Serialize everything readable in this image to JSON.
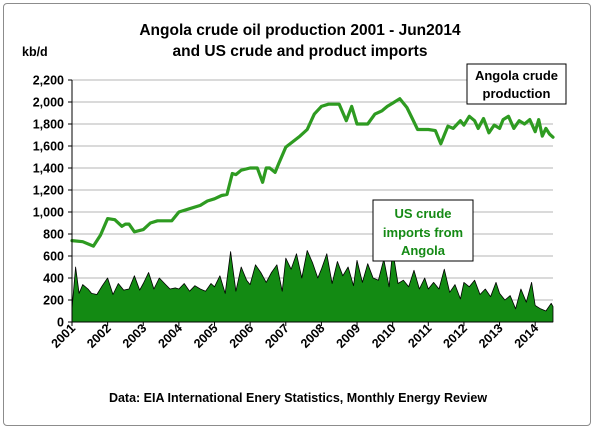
{
  "chart_data": {
    "type": "line",
    "title_line1": "Angola crude oil production 2001 - Jun2014",
    "title_line2": "and US crude and product imports",
    "ylabel": "kb/d",
    "ylim": [
      0,
      2200
    ],
    "yticks": [
      "0",
      "200",
      "400",
      "600",
      "800",
      "1,000",
      "1,200",
      "1,400",
      "1,600",
      "1,800",
      "2,000",
      "2,200"
    ],
    "xticks": [
      "2001",
      "2002",
      "2003",
      "2004",
      "2005",
      "2006",
      "2007",
      "2008",
      "2009",
      "2010",
      "2011",
      "2012",
      "2013",
      "2014"
    ],
    "xlim": [
      2001.0,
      2014.5
    ],
    "grid": true,
    "annotations": {
      "production": [
        "Angola crude",
        "production"
      ],
      "imports": [
        "US crude",
        "imports from",
        "Angola"
      ]
    },
    "colors": {
      "production": "#2e9b21",
      "imports_fill": "#138a13",
      "imports_edge": "#000000",
      "grid": "#b4b4b4"
    },
    "series": [
      {
        "key": "production",
        "type": "line",
        "x": [
          2001.0,
          2001.3,
          2001.6,
          2001.8,
          2002.0,
          2002.2,
          2002.4,
          2002.5,
          2002.6,
          2002.75,
          2003.0,
          2003.2,
          2003.4,
          2003.6,
          2003.8,
          2004.0,
          2004.3,
          2004.6,
          2004.8,
          2005.0,
          2005.2,
          2005.35,
          2005.5,
          2005.6,
          2005.75,
          2006.0,
          2006.2,
          2006.35,
          2006.45,
          2006.55,
          2006.7,
          2006.8,
          2007.0,
          2007.2,
          2007.4,
          2007.6,
          2007.8,
          2008.0,
          2008.2,
          2008.5,
          2008.7,
          2008.85,
          2009.0,
          2009.3,
          2009.5,
          2009.7,
          2009.85,
          2010.0,
          2010.2,
          2010.4,
          2010.55,
          2010.7,
          2010.85,
          2011.0,
          2011.2,
          2011.35,
          2011.45,
          2011.55,
          2011.7,
          2011.9,
          2012.0,
          2012.15,
          2012.3,
          2012.4,
          2012.55,
          2012.7,
          2012.85,
          2013.0,
          2013.1,
          2013.25,
          2013.4,
          2013.55,
          2013.7,
          2013.85,
          2014.0,
          2014.1,
          2014.2,
          2014.3,
          2014.4,
          2014.5
        ],
        "values": [
          740,
          730,
          690,
          790,
          940,
          930,
          870,
          890,
          890,
          820,
          840,
          900,
          920,
          920,
          920,
          1000,
          1030,
          1060,
          1100,
          1120,
          1150,
          1160,
          1350,
          1340,
          1380,
          1400,
          1400,
          1270,
          1400,
          1400,
          1360,
          1440,
          1590,
          1640,
          1690,
          1750,
          1890,
          1960,
          1980,
          1980,
          1830,
          1960,
          1800,
          1800,
          1890,
          1920,
          1960,
          1990,
          2030,
          1950,
          1850,
          1750,
          1750,
          1750,
          1740,
          1620,
          1700,
          1780,
          1760,
          1830,
          1790,
          1870,
          1830,
          1760,
          1850,
          1720,
          1790,
          1760,
          1840,
          1870,
          1760,
          1830,
          1800,
          1840,
          1730,
          1840,
          1690,
          1760,
          1710,
          1680
        ]
      },
      {
        "key": "imports",
        "type": "area",
        "x": [
          2001.0,
          2001.1,
          2001.2,
          2001.3,
          2001.45,
          2001.55,
          2001.7,
          2001.85,
          2002.0,
          2002.15,
          2002.3,
          2002.45,
          2002.6,
          2002.75,
          2002.9,
          2003.0,
          2003.15,
          2003.3,
          2003.45,
          2003.6,
          2003.75,
          2003.9,
          2004.0,
          2004.15,
          2004.3,
          2004.45,
          2004.6,
          2004.75,
          2004.9,
          2005.0,
          2005.15,
          2005.3,
          2005.45,
          2005.6,
          2005.75,
          2005.9,
          2006.0,
          2006.15,
          2006.3,
          2006.45,
          2006.6,
          2006.75,
          2006.9,
          2007.0,
          2007.15,
          2007.3,
          2007.45,
          2007.6,
          2007.75,
          2007.9,
          2008.0,
          2008.15,
          2008.3,
          2008.45,
          2008.6,
          2008.75,
          2008.9,
          2009.0,
          2009.15,
          2009.3,
          2009.45,
          2009.6,
          2009.75,
          2009.9,
          2010.0,
          2010.15,
          2010.3,
          2010.45,
          2010.6,
          2010.75,
          2010.9,
          2011.0,
          2011.15,
          2011.3,
          2011.45,
          2011.6,
          2011.75,
          2011.9,
          2012.0,
          2012.15,
          2012.3,
          2012.45,
          2012.6,
          2012.75,
          2012.9,
          2013.0,
          2013.15,
          2013.3,
          2013.45,
          2013.6,
          2013.75,
          2013.9,
          2014.0,
          2014.15,
          2014.3,
          2014.45,
          2014.5
        ],
        "values": [
          120,
          500,
          260,
          340,
          300,
          260,
          250,
          330,
          400,
          250,
          350,
          290,
          300,
          420,
          290,
          350,
          450,
          300,
          400,
          350,
          300,
          310,
          300,
          350,
          280,
          330,
          300,
          280,
          350,
          320,
          420,
          260,
          640,
          280,
          500,
          380,
          340,
          520,
          450,
          360,
          450,
          520,
          280,
          580,
          480,
          620,
          400,
          650,
          540,
          400,
          480,
          620,
          350,
          550,
          420,
          500,
          330,
          560,
          360,
          530,
          400,
          380,
          570,
          320,
          650,
          350,
          380,
          320,
          470,
          300,
          400,
          300,
          360,
          300,
          480,
          270,
          340,
          210,
          360,
          320,
          380,
          250,
          300,
          230,
          360,
          260,
          200,
          240,
          120,
          300,
          180,
          360,
          150,
          120,
          100,
          170,
          140
        ]
      }
    ]
  }
}
